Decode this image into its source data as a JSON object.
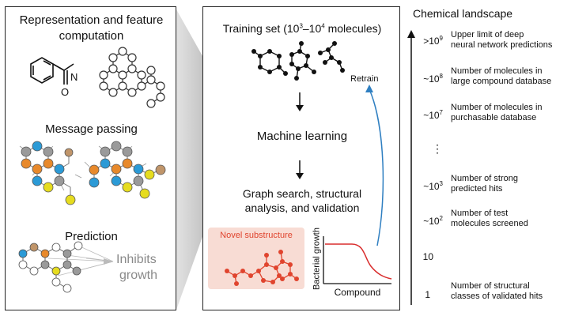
{
  "left_panel": {
    "title_line1": "Representation and feature",
    "title_line2": "computation",
    "atom_label_n": "N",
    "atom_label_o": "O",
    "message_passing_title": "Message passing",
    "prediction_title": "Prediction",
    "prediction_output_line1": "Inhibits",
    "prediction_output_line2": "growth"
  },
  "center_panel": {
    "training_title_prefix": "Training set (10",
    "training_exp1": "3",
    "training_dash": "–10",
    "training_exp2": "4",
    "training_suffix": " molecules)",
    "machine_learning_label": "Machine learning",
    "graph_search_line1": "Graph search, structural",
    "graph_search_line2": "analysis, and validation",
    "retrain_label": "Retrain",
    "novel_substructure_label": "Novel substructure",
    "plot_y_label": "Bacterial growth",
    "plot_x_label": "Compound"
  },
  "landscape": {
    "title": "Chemical landscape",
    "rows": [
      {
        "prefix": ">10",
        "exp": "9",
        "desc_line1": "Upper limit of deep",
        "desc_line2": "neural network predictions"
      },
      {
        "prefix": "~10",
        "exp": "8",
        "desc_line1": "Number of molecules in",
        "desc_line2": "large compound database"
      },
      {
        "prefix": "~10",
        "exp": "7",
        "desc_line1": "Number of molecules in",
        "desc_line2": "purchasable database"
      },
      {
        "prefix": "⋮",
        "exp": "",
        "desc_line1": "",
        "desc_line2": ""
      },
      {
        "prefix": "~10",
        "exp": "3",
        "desc_line1": "Number of strong",
        "desc_line2": "predicted hits"
      },
      {
        "prefix": "~10",
        "exp": "2",
        "desc_line1": "Number of test",
        "desc_line2": "molecules screened"
      },
      {
        "prefix": "10",
        "exp": "",
        "desc_line1": "",
        "desc_line2": ""
      },
      {
        "prefix": "1",
        "exp": "",
        "desc_line1": "Number of structural",
        "desc_line2": "classes of validated hits"
      }
    ]
  },
  "colors": {
    "node_blue": "#2b9ad6",
    "node_orange": "#e8892b",
    "node_yellow": "#e6dc1f",
    "node_gray": "#9a9a9a",
    "node_brown": "#c0956a",
    "retrain_arrow": "#2f7fc1",
    "novel_box_bg": "#f8dcd4",
    "novel_red": "#e0442e",
    "curve_red": "#d92d2d",
    "funnel_gray": "#8a8a8a"
  }
}
